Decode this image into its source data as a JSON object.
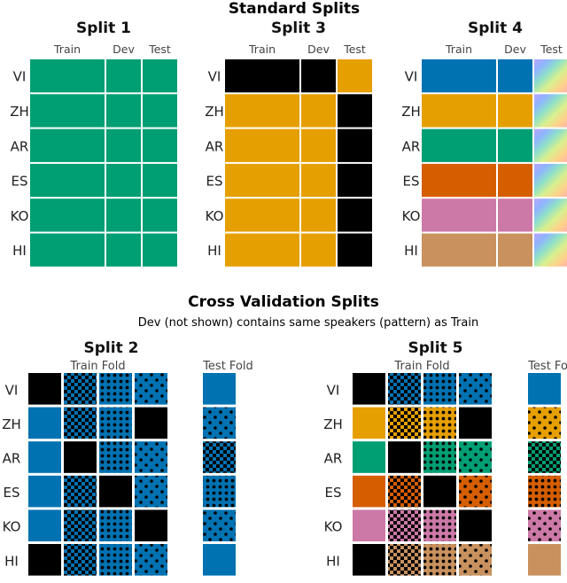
{
  "title": "Standard Splits",
  "languages": [
    "VI",
    "ZH",
    "AR",
    "ES",
    "KO",
    "HI"
  ],
  "colors": {
    "black": "#000000",
    "green": "#009e73",
    "orange": "#e69f00",
    "blue": "#0072b2",
    "vermillion": "#d55e00",
    "pink": "#cc79a7",
    "tan": "#c8915e",
    "white": "#ffffff"
  },
  "standard": {
    "columns": {
      "train": "Train",
      "dev": "Dev",
      "test": "Test"
    },
    "panels": [
      {
        "name": "Split 1",
        "rows": [
          [
            "green",
            "green",
            "green"
          ],
          [
            "green",
            "green",
            "green"
          ],
          [
            "green",
            "green",
            "green"
          ],
          [
            "green",
            "green",
            "green"
          ],
          [
            "green",
            "green",
            "green"
          ],
          [
            "green",
            "green",
            "green"
          ]
        ]
      },
      {
        "name": "Split 3",
        "rows": [
          [
            "black",
            "black",
            "orange"
          ],
          [
            "orange",
            "orange",
            "black"
          ],
          [
            "orange",
            "orange",
            "black"
          ],
          [
            "orange",
            "orange",
            "black"
          ],
          [
            "orange",
            "orange",
            "black"
          ],
          [
            "orange",
            "orange",
            "black"
          ]
        ]
      },
      {
        "name": "Split 4",
        "rows": [
          [
            "blue",
            "blue",
            "rainbow"
          ],
          [
            "orange",
            "orange",
            "rainbow"
          ],
          [
            "green",
            "green",
            "rainbow"
          ],
          [
            "vermillion",
            "vermillion",
            "rainbow"
          ],
          [
            "pink",
            "pink",
            "rainbow"
          ],
          [
            "tan",
            "tan",
            "rainbow"
          ]
        ]
      }
    ]
  },
  "cv": {
    "title": "Cross Validation Splits",
    "subtitle": "Dev  (not shown) contains same speakers (pattern) as Train",
    "train_fold_label": "Train Fold",
    "test_fold_label": "Test Fold",
    "pattern_order": [
      "solid",
      "checker",
      "grid",
      "dots"
    ],
    "panels": [
      {
        "name": "Split 2",
        "train": [
          [
            "black",
            "blue:checker",
            "blue:grid",
            "blue:dots"
          ],
          [
            "blue",
            "blue:checker",
            "blue:grid",
            "black"
          ],
          [
            "blue",
            "black",
            "blue:grid",
            "blue:dots"
          ],
          [
            "blue",
            "blue:checker",
            "black",
            "blue:dots"
          ],
          [
            "blue",
            "blue:checker",
            "blue:grid",
            "black"
          ],
          [
            "black",
            "blue:checker",
            "blue:grid",
            "blue:dots"
          ]
        ],
        "test": [
          "blue",
          "blue:dots",
          "blue:checker",
          "blue:grid",
          "blue:dots",
          "blue"
        ]
      },
      {
        "name": "Split 5",
        "train": [
          [
            "black",
            "blue:checker",
            "blue:grid",
            "blue:dots"
          ],
          [
            "orange",
            "orange:checker",
            "orange:grid",
            "black"
          ],
          [
            "green",
            "black",
            "green:grid",
            "green:dots"
          ],
          [
            "vermillion",
            "vermillion:checker",
            "black",
            "vermillion:dots"
          ],
          [
            "pink",
            "pink:checker",
            "pink:grid",
            "black"
          ],
          [
            "black",
            "tan:checker",
            "tan:grid",
            "tan:dots"
          ]
        ],
        "test": [
          "blue",
          "orange:dots",
          "green:checker",
          "vermillion:grid",
          "pink:dots",
          "tan"
        ]
      }
    ]
  }
}
